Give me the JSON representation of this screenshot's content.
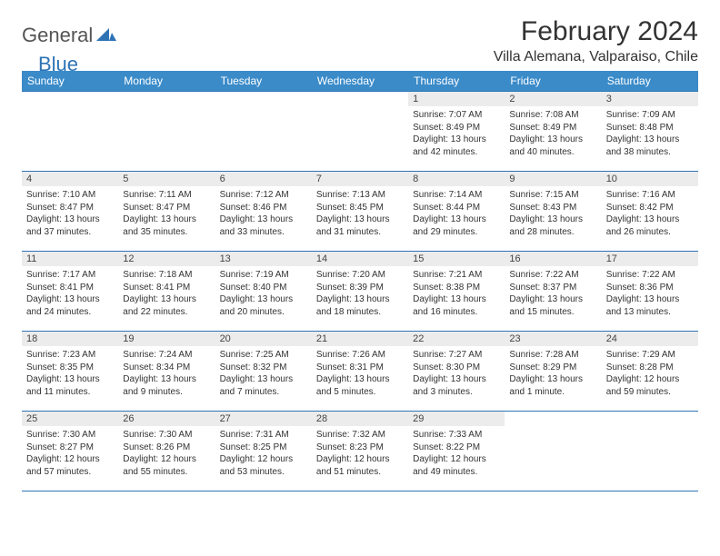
{
  "logo": {
    "general": "General",
    "blue": "Blue"
  },
  "title": "February 2024",
  "location": "Villa Alemana, Valparaiso, Chile",
  "colors": {
    "header_bg": "#3b8bc9",
    "header_text": "#ffffff",
    "border": "#2e74b5",
    "daynum_bg": "#ececec",
    "logo_blue": "#2e74b5"
  },
  "dayHeaders": [
    "Sunday",
    "Monday",
    "Tuesday",
    "Wednesday",
    "Thursday",
    "Friday",
    "Saturday"
  ],
  "weeks": [
    [
      null,
      null,
      null,
      null,
      {
        "n": "1",
        "sr": "7:07 AM",
        "ss": "8:49 PM",
        "dl": "13 hours and 42 minutes."
      },
      {
        "n": "2",
        "sr": "7:08 AM",
        "ss": "8:49 PM",
        "dl": "13 hours and 40 minutes."
      },
      {
        "n": "3",
        "sr": "7:09 AM",
        "ss": "8:48 PM",
        "dl": "13 hours and 38 minutes."
      }
    ],
    [
      {
        "n": "4",
        "sr": "7:10 AM",
        "ss": "8:47 PM",
        "dl": "13 hours and 37 minutes."
      },
      {
        "n": "5",
        "sr": "7:11 AM",
        "ss": "8:47 PM",
        "dl": "13 hours and 35 minutes."
      },
      {
        "n": "6",
        "sr": "7:12 AM",
        "ss": "8:46 PM",
        "dl": "13 hours and 33 minutes."
      },
      {
        "n": "7",
        "sr": "7:13 AM",
        "ss": "8:45 PM",
        "dl": "13 hours and 31 minutes."
      },
      {
        "n": "8",
        "sr": "7:14 AM",
        "ss": "8:44 PM",
        "dl": "13 hours and 29 minutes."
      },
      {
        "n": "9",
        "sr": "7:15 AM",
        "ss": "8:43 PM",
        "dl": "13 hours and 28 minutes."
      },
      {
        "n": "10",
        "sr": "7:16 AM",
        "ss": "8:42 PM",
        "dl": "13 hours and 26 minutes."
      }
    ],
    [
      {
        "n": "11",
        "sr": "7:17 AM",
        "ss": "8:41 PM",
        "dl": "13 hours and 24 minutes."
      },
      {
        "n": "12",
        "sr": "7:18 AM",
        "ss": "8:41 PM",
        "dl": "13 hours and 22 minutes."
      },
      {
        "n": "13",
        "sr": "7:19 AM",
        "ss": "8:40 PM",
        "dl": "13 hours and 20 minutes."
      },
      {
        "n": "14",
        "sr": "7:20 AM",
        "ss": "8:39 PM",
        "dl": "13 hours and 18 minutes."
      },
      {
        "n": "15",
        "sr": "7:21 AM",
        "ss": "8:38 PM",
        "dl": "13 hours and 16 minutes."
      },
      {
        "n": "16",
        "sr": "7:22 AM",
        "ss": "8:37 PM",
        "dl": "13 hours and 15 minutes."
      },
      {
        "n": "17",
        "sr": "7:22 AM",
        "ss": "8:36 PM",
        "dl": "13 hours and 13 minutes."
      }
    ],
    [
      {
        "n": "18",
        "sr": "7:23 AM",
        "ss": "8:35 PM",
        "dl": "13 hours and 11 minutes."
      },
      {
        "n": "19",
        "sr": "7:24 AM",
        "ss": "8:34 PM",
        "dl": "13 hours and 9 minutes."
      },
      {
        "n": "20",
        "sr": "7:25 AM",
        "ss": "8:32 PM",
        "dl": "13 hours and 7 minutes."
      },
      {
        "n": "21",
        "sr": "7:26 AM",
        "ss": "8:31 PM",
        "dl": "13 hours and 5 minutes."
      },
      {
        "n": "22",
        "sr": "7:27 AM",
        "ss": "8:30 PM",
        "dl": "13 hours and 3 minutes."
      },
      {
        "n": "23",
        "sr": "7:28 AM",
        "ss": "8:29 PM",
        "dl": "13 hours and 1 minute."
      },
      {
        "n": "24",
        "sr": "7:29 AM",
        "ss": "8:28 PM",
        "dl": "12 hours and 59 minutes."
      }
    ],
    [
      {
        "n": "25",
        "sr": "7:30 AM",
        "ss": "8:27 PM",
        "dl": "12 hours and 57 minutes."
      },
      {
        "n": "26",
        "sr": "7:30 AM",
        "ss": "8:26 PM",
        "dl": "12 hours and 55 minutes."
      },
      {
        "n": "27",
        "sr": "7:31 AM",
        "ss": "8:25 PM",
        "dl": "12 hours and 53 minutes."
      },
      {
        "n": "28",
        "sr": "7:32 AM",
        "ss": "8:23 PM",
        "dl": "12 hours and 51 minutes."
      },
      {
        "n": "29",
        "sr": "7:33 AM",
        "ss": "8:22 PM",
        "dl": "12 hours and 49 minutes."
      },
      null,
      null
    ]
  ],
  "labels": {
    "sunrise": "Sunrise: ",
    "sunset": "Sunset: ",
    "daylight": "Daylight: "
  }
}
